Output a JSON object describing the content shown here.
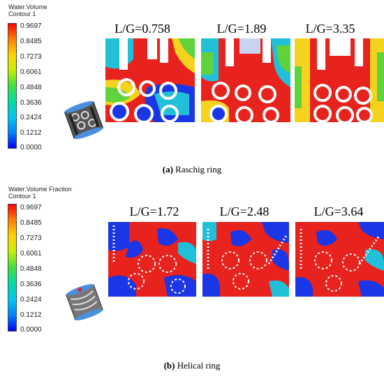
{
  "figure_a": {
    "legend_title_line1": "Water.Volume",
    "legend_title_line2": "Contour 1",
    "ticks": [
      "0.9697",
      "0.8485",
      "0.7273",
      "0.6061",
      "0.4848",
      "0.3636",
      "0.2424",
      "0.1212",
      "0.0000"
    ],
    "panels": [
      "L/G=0.758",
      "L/G=1.89",
      "L/G=3.35"
    ],
    "caption_letter": "(a)",
    "caption_text": " Raschig ring"
  },
  "figure_b": {
    "legend_title_line1": "Water.Volume Fraction",
    "legend_title_line2": "Contour 1",
    "ticks": [
      "0.9697",
      "0.8485",
      "0.7273",
      "0.6061",
      "0.4848",
      "0.3636",
      "0.2424",
      "0.1212",
      "0.0000"
    ],
    "panels": [
      "L/G=1.72",
      "L/G=2.48",
      "L/G=3.64"
    ],
    "caption_letter": "(b)",
    "caption_text": " Helical ring"
  },
  "colors": {
    "high": "#e8221c",
    "mid_high": "#f5d21e",
    "mid": "#5fd23c",
    "mid_low": "#22c0d8",
    "low": "#1a36e6"
  }
}
